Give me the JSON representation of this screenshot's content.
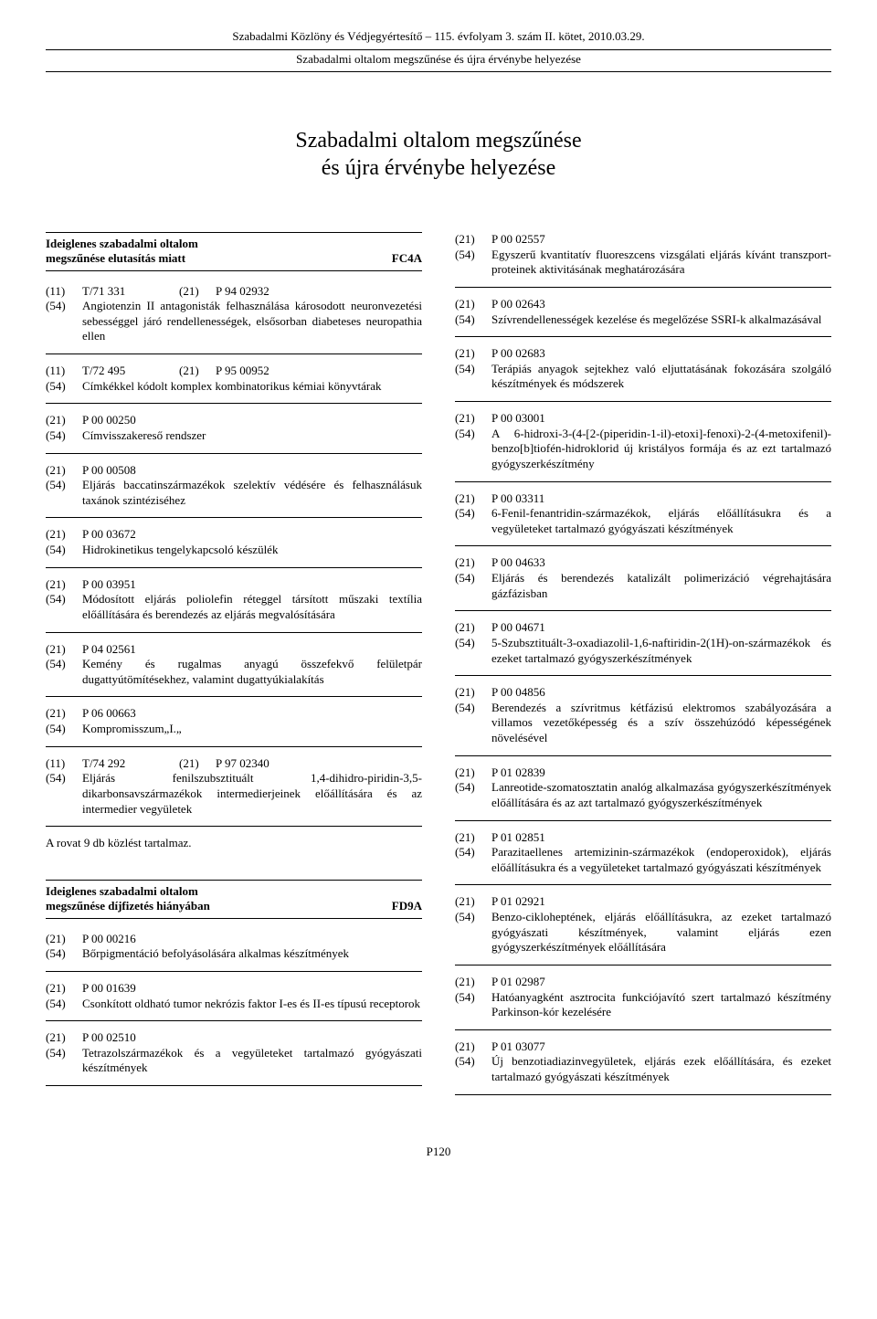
{
  "header": {
    "line1": "Szabadalmi Közlöny és Védjegyértesítő – 115. évfolyam 3. szám II. kötet, 2010.03.29.",
    "line2": "Szabadalmi oltalom megszűnése és újra érvénybe helyezése"
  },
  "main_title": "Szabadalmi oltalom megszűnése\nés újra érvénybe helyezése",
  "section1": {
    "title": "Ideiglenes szabadalmi oltalom\nmegszűnése elutasítás miatt",
    "code": "FC4A"
  },
  "section2": {
    "title": "Ideiglenes szabadalmi oltalom\nmegszűnése díjfizetés hiányában",
    "code": "FD9A"
  },
  "rovat_text": "A rovat 9 db közlést tartalmaz.",
  "footer": "P120",
  "left_entries_a": [
    {
      "triple": {
        "c1": "(11)",
        "c2": "T/71 331",
        "c3": "(21)",
        "c4": "P 94 02932"
      },
      "lines": [
        {
          "code": "(54)",
          "text": "Angiotenzin II antagonisták felhasználása károsodott neuronvezetési sebességgel járó rendellenességek, elsősorban diabeteses neuropathia ellen"
        }
      ]
    },
    {
      "triple": {
        "c1": "(11)",
        "c2": "T/72 495",
        "c3": "(21)",
        "c4": "P 95 00952"
      },
      "lines": [
        {
          "code": "(54)",
          "text": "Címkékkel kódolt komplex kombinatorikus kémiai könyvtárak"
        }
      ]
    },
    {
      "lines": [
        {
          "code": "(21)",
          "text": "P 00 00250"
        },
        {
          "code": "(54)",
          "text": "Címvisszakereső rendszer"
        }
      ]
    },
    {
      "lines": [
        {
          "code": "(21)",
          "text": "P 00 00508"
        },
        {
          "code": "(54)",
          "text": "Eljárás baccatinszármazékok szelektív védésére és felhasználásuk taxánok szintéziséhez"
        }
      ]
    },
    {
      "lines": [
        {
          "code": "(21)",
          "text": "P 00 03672"
        },
        {
          "code": "(54)",
          "text": "Hidrokinetikus tengelykapcsoló készülék"
        }
      ]
    },
    {
      "lines": [
        {
          "code": "(21)",
          "text": "P 00 03951"
        },
        {
          "code": "(54)",
          "text": "Módosított eljárás poliolefin réteggel társított műszaki textília előállítására és berendezés az eljárás megvalósítására"
        }
      ]
    },
    {
      "lines": [
        {
          "code": "(21)",
          "text": "P 04 02561"
        },
        {
          "code": "(54)",
          "text": "Kemény és rugalmas anyagú összefekvő felületpár dugattyútömítésekhez, valamint dugattyúkialakítás"
        }
      ]
    },
    {
      "lines": [
        {
          "code": "(21)",
          "text": "P 06 00663"
        },
        {
          "code": "(54)",
          "text": "Kompromisszum„I.„"
        }
      ]
    },
    {
      "triple": {
        "c1": "(11)",
        "c2": "T/74 292",
        "c3": "(21)",
        "c4": "P 97 02340"
      },
      "lines": [
        {
          "code": "(54)",
          "text": "Eljárás fenilszubsztituált 1,4-dihidro-piridin-3,5-dikarbonsavszármazékok intermedierjeinek előállítására és az intermedier vegyületek"
        }
      ]
    }
  ],
  "left_entries_b": [
    {
      "lines": [
        {
          "code": "(21)",
          "text": "P 00 00216"
        },
        {
          "code": "(54)",
          "text": "Bőrpigmentáció befolyásolására alkalmas készítmények"
        }
      ]
    },
    {
      "lines": [
        {
          "code": "(21)",
          "text": "P 00 01639"
        },
        {
          "code": "(54)",
          "text": "Csonkított oldható tumor nekrózis faktor I-es és II-es típusú receptorok"
        }
      ]
    },
    {
      "lines": [
        {
          "code": "(21)",
          "text": "P 00 02510"
        },
        {
          "code": "(54)",
          "text": "Tetrazolszármazékok és a vegyületeket tartalmazó gyógyászati készítmények"
        }
      ]
    }
  ],
  "right_entries": [
    {
      "lines": [
        {
          "code": "(21)",
          "text": "P 00 02557"
        },
        {
          "code": "(54)",
          "text": "Egyszerű kvantitatív fluoreszcens vizsgálati eljárás kívánt transzport-proteinek aktivitásának meghatározására"
        }
      ]
    },
    {
      "lines": [
        {
          "code": "(21)",
          "text": "P 00 02643"
        },
        {
          "code": "(54)",
          "text": "Szívrendellenességek kezelése és megelőzése SSRI-k alkalmazásával"
        }
      ]
    },
    {
      "lines": [
        {
          "code": "(21)",
          "text": "P 00 02683"
        },
        {
          "code": "(54)",
          "text": "Terápiás anyagok sejtekhez való eljuttatásának fokozására szolgáló készítmények és módszerek"
        }
      ]
    },
    {
      "lines": [
        {
          "code": "(21)",
          "text": "P 00 03001"
        },
        {
          "code": "(54)",
          "text": "A 6-hidroxi-3-(4-[2-(piperidin-1-il)-etoxi]-fenoxi)-2-(4-metoxifenil)-benzo[b]tiofén-hidroklorid új kristályos formája és az ezt tartalmazó gyógyszerkészítmény"
        }
      ]
    },
    {
      "lines": [
        {
          "code": "(21)",
          "text": "P 00 03311"
        },
        {
          "code": "(54)",
          "text": "6-Fenil-fenantridin-származékok, eljárás előállításukra és a vegyületeket tartalmazó gyógyászati készítmények"
        }
      ]
    },
    {
      "lines": [
        {
          "code": "(21)",
          "text": "P 00 04633"
        },
        {
          "code": "(54)",
          "text": "Eljárás és berendezés katalizált polimerizáció végrehajtására gázfázisban"
        }
      ]
    },
    {
      "lines": [
        {
          "code": "(21)",
          "text": "P 00 04671"
        },
        {
          "code": "(54)",
          "text": "5-Szubsztituált-3-oxadiazolil-1,6-naftiridin-2(1H)-on-származékok és ezeket tartalmazó gyógyszerkészítmények"
        }
      ]
    },
    {
      "lines": [
        {
          "code": "(21)",
          "text": "P 00 04856"
        },
        {
          "code": "(54)",
          "text": "Berendezés a szívritmus kétfázisú elektromos szabályozására a villamos vezetőképesség és a szív összehúzódó képességének növelésével"
        }
      ]
    },
    {
      "lines": [
        {
          "code": "(21)",
          "text": "P 01 02839"
        },
        {
          "code": "(54)",
          "text": "Lanreotide-szomatosztatin analóg alkalmazása gyógyszerkészítmények előállítására és az azt tartalmazó gyógyszerkészítmények"
        }
      ]
    },
    {
      "lines": [
        {
          "code": "(21)",
          "text": "P 01 02851"
        },
        {
          "code": "(54)",
          "text": "Parazitaellenes artemizinin-származékok (endoperoxidok), eljárás előállításukra és a vegyületeket tartalmazó gyógyászati készítmények"
        }
      ]
    },
    {
      "lines": [
        {
          "code": "(21)",
          "text": "P 01 02921"
        },
        {
          "code": "(54)",
          "text": "Benzo-cikloheptének, eljárás előállításukra, az ezeket tartalmazó gyógyászati készítmények, valamint eljárás ezen gyógyszerkészítmények előállítására"
        }
      ]
    },
    {
      "lines": [
        {
          "code": "(21)",
          "text": "P 01 02987"
        },
        {
          "code": "(54)",
          "text": "Hatóanyagként asztrocita funkciójavító szert tartalmazó készítmény Parkinson-kór kezelésére"
        }
      ]
    },
    {
      "lines": [
        {
          "code": "(21)",
          "text": "P 01 03077"
        },
        {
          "code": "(54)",
          "text": "Új benzotiadiazinvegyületek, eljárás ezek előállítására, és ezeket tartalmazó gyógyászati készítmények"
        }
      ]
    }
  ]
}
